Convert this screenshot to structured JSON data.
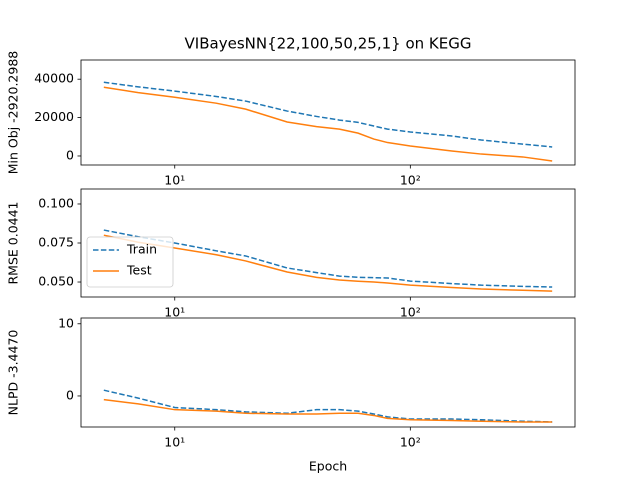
{
  "chart_data": [
    {
      "type": "line",
      "title": "VIBayesNN{22,100,50,25,1} on KEGG",
      "y_label": "Min Obj -2920.2988",
      "x": [
        5,
        7,
        10,
        15,
        20,
        30,
        40,
        50,
        60,
        70,
        80,
        100,
        150,
        200,
        300,
        400
      ],
      "x_scale": "log",
      "xlim": [
        4,
        500
      ],
      "xticks": [
        {
          "value": 10,
          "label": "10¹"
        },
        {
          "value": 100,
          "label": "10²"
        }
      ],
      "ylim": [
        -4700,
        50000
      ],
      "yticks": [
        0,
        20000,
        40000
      ],
      "series": [
        {
          "color": "#1f77b4",
          "dash": true,
          "values": [
            38400,
            36000,
            33800,
            31000,
            28600,
            23400,
            20600,
            18700,
            17500,
            15600,
            14000,
            12500,
            10400,
            8300,
            6200,
            4700
          ]
        },
        {
          "color": "#ff7f0e",
          "dash": false,
          "values": [
            35800,
            33000,
            30600,
            27500,
            24400,
            17700,
            15300,
            14000,
            11900,
            8800,
            7000,
            5200,
            2600,
            1000,
            -500,
            -2600
          ]
        }
      ]
    },
    {
      "type": "line",
      "y_label": "RMSE 0.0441",
      "x": [
        5,
        7,
        10,
        15,
        20,
        30,
        40,
        50,
        60,
        70,
        80,
        100,
        150,
        200,
        300,
        400
      ],
      "x_scale": "log",
      "xlim": [
        4,
        500
      ],
      "xticks": [
        {
          "value": 10,
          "label": "10¹"
        },
        {
          "value": 100,
          "label": "10²"
        }
      ],
      "ylim": [
        0.0404,
        0.1096
      ],
      "yticks": [
        {
          "value": 0.05,
          "label": "0.050"
        },
        {
          "value": 0.075,
          "label": "0.075"
        },
        {
          "value": 0.1,
          "label": "0.100"
        }
      ],
      "legend": "lower left",
      "series": [
        {
          "name": "Train",
          "color": "#1f77b4",
          "dash": true,
          "values": [
            0.0833,
            0.079,
            0.075,
            0.07,
            0.0667,
            0.059,
            0.056,
            0.0538,
            0.053,
            0.0528,
            0.0526,
            0.0506,
            0.049,
            0.048,
            0.0472,
            0.0468
          ]
        },
        {
          "name": "Test",
          "color": "#ff7f0e",
          "dash": false,
          "values": [
            0.08,
            0.0755,
            0.0718,
            0.0675,
            0.0635,
            0.0564,
            0.053,
            0.0513,
            0.0505,
            0.05,
            0.0494,
            0.048,
            0.0465,
            0.0455,
            0.0447,
            0.0442
          ]
        }
      ]
    },
    {
      "type": "line",
      "y_label": "NLPD -3.4470",
      "x_label": "Epoch",
      "x": [
        5,
        7,
        10,
        15,
        20,
        30,
        40,
        50,
        60,
        70,
        80,
        100,
        150,
        200,
        300,
        400
      ],
      "x_scale": "log",
      "xlim": [
        4,
        500
      ],
      "xticks": [
        {
          "value": 10,
          "label": "10¹"
        },
        {
          "value": 100,
          "label": "10²"
        }
      ],
      "ylim": [
        -4.3,
        10.8
      ],
      "yticks": [
        0,
        10
      ],
      "series": [
        {
          "color": "#1f77b4",
          "dash": true,
          "values": [
            0.8,
            -0.3,
            -1.6,
            -1.9,
            -2.2,
            -2.4,
            -1.9,
            -1.9,
            -2.1,
            -2.5,
            -2.9,
            -3.2,
            -3.2,
            -3.3,
            -3.5,
            -3.6
          ]
        },
        {
          "color": "#ff7f0e",
          "dash": false,
          "values": [
            -0.5,
            -1.1,
            -1.9,
            -2.1,
            -2.4,
            -2.5,
            -2.5,
            -2.4,
            -2.4,
            -2.7,
            -3.1,
            -3.3,
            -3.4,
            -3.5,
            -3.6,
            -3.6
          ]
        }
      ]
    }
  ]
}
